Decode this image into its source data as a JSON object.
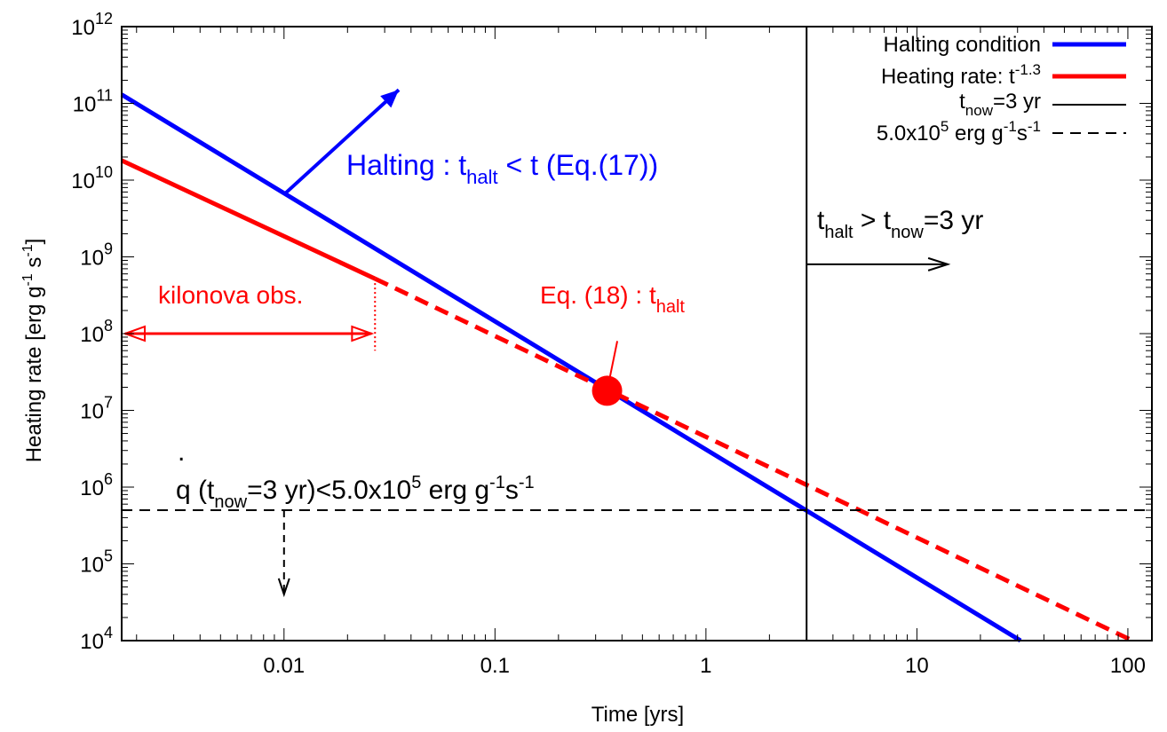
{
  "chart_data": {
    "type": "line",
    "title": "",
    "xlabel": "Time [yrs]",
    "ylabel_parts": {
      "base": "Heating rate [erg g",
      "sup1": "-1",
      "mid": " s",
      "sup2": "-1",
      "end": "]"
    },
    "x_scale": "log",
    "y_scale": "log",
    "xlim": [
      0.0017,
      130
    ],
    "ylim": [
      10000,
      1000000000000
    ],
    "x_ticks": [
      {
        "value": 0.01,
        "label": "0.01"
      },
      {
        "value": 0.1,
        "label": "0.1"
      },
      {
        "value": 1,
        "label": "1"
      },
      {
        "value": 10,
        "label": "10"
      },
      {
        "value": 100,
        "label": "100"
      }
    ],
    "y_ticks": [
      {
        "value": 10000,
        "exp": "4"
      },
      {
        "value": 100000,
        "exp": "5"
      },
      {
        "value": 1000000,
        "exp": "6"
      },
      {
        "value": 10000000,
        "exp": "7"
      },
      {
        "value": 100000000,
        "exp": "8"
      },
      {
        "value": 1000000000,
        "exp": "9"
      },
      {
        "value": 10000000000,
        "exp": "10"
      },
      {
        "value": 100000000000,
        "exp": "11"
      },
      {
        "value": 1000000000000,
        "exp": "12"
      }
    ],
    "tick_base": "10",
    "legend": {
      "position": "top-right",
      "entries": [
        {
          "key": "halting",
          "parts": [
            "Halting condition"
          ],
          "color": "#0000ff",
          "style": "solid-thick"
        },
        {
          "key": "heating",
          "parts": [
            "Heating rate: t",
            "-1.3"
          ],
          "color": "#ff0000",
          "style": "solid-thick"
        },
        {
          "key": "tnow",
          "parts": [
            "t",
            "now",
            "=3 yr"
          ],
          "color": "#000000",
          "style": "solid-thin"
        },
        {
          "key": "limit",
          "parts": [
            "5.0x10",
            "5",
            " erg g",
            "-1",
            "s",
            "-1"
          ],
          "color": "#000000",
          "style": "dashed"
        }
      ]
    },
    "series": [
      {
        "key": "halting",
        "color": "#0000ff",
        "style": "solid",
        "points": [
          [
            0.0017,
            130000000000
          ],
          [
            31,
            10000
          ]
        ]
      },
      {
        "key": "heating_observed",
        "color": "#ff0000",
        "style": "solid",
        "points": [
          [
            0.0017,
            18000000000
          ],
          [
            0.027,
            520000000
          ]
        ]
      },
      {
        "key": "heating_extrapolated",
        "color": "#ff0000",
        "style": "dashed",
        "points": [
          [
            0.027,
            520000000
          ],
          [
            105,
            10000
          ]
        ]
      },
      {
        "key": "limit",
        "color": "#000000",
        "style": "dashed",
        "points": [
          [
            0.0017,
            500000
          ],
          [
            130,
            500000
          ]
        ]
      },
      {
        "key": "tnow",
        "color": "#000000",
        "style": "solid",
        "points": [
          [
            3,
            10000
          ],
          [
            3,
            1000000000000
          ]
        ]
      }
    ],
    "intersection_point": {
      "x": 0.34,
      "y": 18000000,
      "color": "#ff0000"
    },
    "annotations": {
      "halting_label": {
        "pre": "Halting : t",
        "sub": "halt",
        "post": " < t (Eq.(17))",
        "color": "#0000ff"
      },
      "eq18_label": {
        "pre": "Eq. (18) : t",
        "sub": "halt",
        "color": "#ff0000"
      },
      "kilonova_label": {
        "text": "kilonova obs.",
        "color": "#ff0000"
      },
      "thalt_label": {
        "t1": "t",
        "sub1": "halt",
        "mid": " > t",
        "sub2": "now",
        "post": "=3 yr",
        "color": "#000000"
      },
      "qdot_label": {
        "dot": ".",
        "q": "q",
        "open": " (t",
        "sub1": "now",
        "p1": "=3 yr)<5.0x10",
        "sup1": "5",
        "p2": " erg g",
        "sup2": "-1",
        "p3": "s",
        "sup3": "-1",
        "color": "#000000"
      }
    }
  }
}
